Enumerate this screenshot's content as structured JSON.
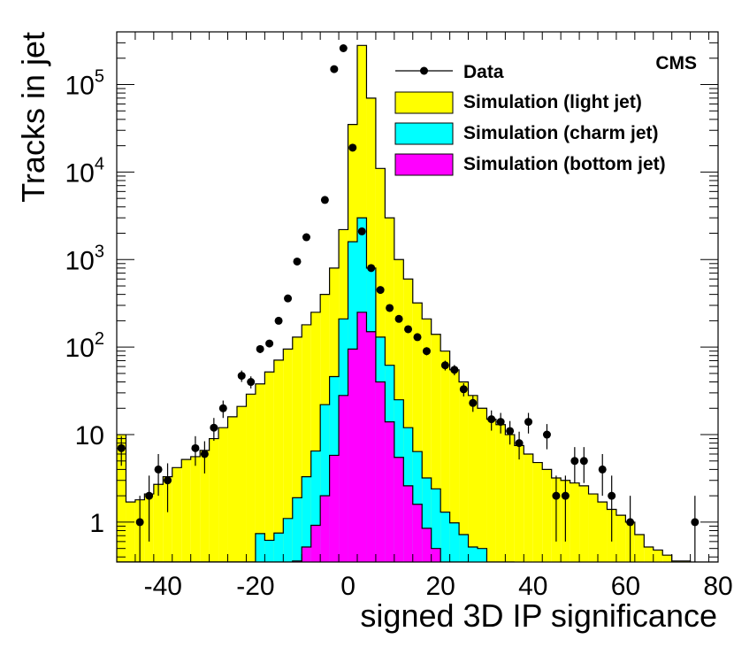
{
  "chart_data": {
    "type": "histogram",
    "title": "",
    "experiment_label": "CMS",
    "xlabel": "signed 3D IP significance",
    "ylabel": "Tracks in jet",
    "x_axis": {
      "range": [
        -50,
        80
      ],
      "scale": "linear",
      "ticks": [
        -40,
        -20,
        0,
        20,
        40,
        60,
        80
      ],
      "tick_labels": [
        "-40",
        "-20",
        "0",
        "20",
        "40",
        "60",
        "80"
      ]
    },
    "y_axis": {
      "scale": "log",
      "range": [
        0.35,
        400000
      ],
      "ticks": [
        1,
        10,
        100,
        1000,
        10000,
        100000
      ],
      "tick_labels": [
        {
          "base": "1",
          "exp": ""
        },
        {
          "base": "10",
          "exp": ""
        },
        {
          "base": "10",
          "exp": "2"
        },
        {
          "base": "10",
          "exp": "3"
        },
        {
          "base": "10",
          "exp": "4"
        },
        {
          "base": "10",
          "exp": "5"
        }
      ]
    },
    "bin_width": 2,
    "bin_edges_start": -50,
    "legend": {
      "position": "top-right",
      "entries": [
        {
          "label": "Data",
          "kind": "marker",
          "color": "#000000"
        },
        {
          "label": "Simulation (light jet)",
          "kind": "fill",
          "color": "#ffff00"
        },
        {
          "label": "Simulation (charm jet)",
          "kind": "fill",
          "color": "#00ffff"
        },
        {
          "label": "Simulation (bottom jet)",
          "kind": "fill",
          "color": "#ff00ff"
        }
      ]
    },
    "series": [
      {
        "name": "Simulation (light jet)",
        "color": "#ffff00",
        "values": [
          10,
          1.7,
          1.8,
          2.1,
          2.7,
          3.3,
          4.2,
          5.2,
          5.6,
          6.6,
          9,
          12,
          16,
          21,
          29,
          38,
          52,
          71,
          95,
          130,
          180,
          250,
          400,
          800,
          2200,
          35000,
          280000,
          70000,
          11000,
          3000,
          1000,
          600,
          320,
          210,
          140,
          90,
          55,
          40,
          28,
          20,
          15,
          13,
          10,
          7.5,
          6,
          4.8,
          4,
          3.2,
          3,
          2.8,
          2.6,
          2.1,
          1.7,
          1.4,
          1.2,
          1,
          0.72,
          0.52,
          0.48,
          0.42,
          0.36,
          0.36,
          0.32,
          0.3,
          0.28
        ]
      },
      {
        "name": "Simulation (charm jet)",
        "color": "#00ffff",
        "values": [
          0.3,
          0.3,
          0.3,
          0.3,
          0.3,
          0.3,
          0.3,
          0.3,
          0.3,
          0.3,
          0.3,
          0.3,
          0.3,
          0.3,
          0.3,
          0.74,
          0.62,
          0.75,
          1.1,
          1.9,
          3.3,
          6.5,
          22,
          46,
          210,
          1600,
          3000,
          800,
          130,
          62,
          25,
          12,
          6.4,
          3.2,
          2.4,
          1.3,
          0.98,
          0.72,
          0.52,
          0.5,
          0.3,
          0.3,
          0.3
        ]
      },
      {
        "name": "Simulation (bottom jet)",
        "color": "#ff00ff",
        "values": [
          0.3,
          0.3,
          0.3,
          0.3,
          0.3,
          0.3,
          0.3,
          0.3,
          0.3,
          0.3,
          0.3,
          0.3,
          0.3,
          0.3,
          0.3,
          0.3,
          0.3,
          0.3,
          0.34,
          0.36,
          0.52,
          0.92,
          2,
          5.8,
          28,
          95,
          250,
          150,
          40,
          14,
          5.5,
          2.6,
          1.6,
          0.85,
          0.5,
          0.3,
          0.3,
          0.3
        ]
      },
      {
        "name": "Data",
        "color": "#000000",
        "kind": "points",
        "points": [
          {
            "x": -49,
            "y": 7,
            "err": 2.6
          },
          {
            "x": -45,
            "y": 1,
            "err": 1
          },
          {
            "x": -43,
            "y": 2,
            "err": 1.4
          },
          {
            "x": -41,
            "y": 4,
            "err": 2
          },
          {
            "x": -39,
            "y": 3,
            "err": 1.7
          },
          {
            "x": -33,
            "y": 7,
            "err": 2.6
          },
          {
            "x": -31,
            "y": 6,
            "err": 2.4
          },
          {
            "x": -29,
            "y": 12,
            "err": 3.5
          },
          {
            "x": -27,
            "y": 20,
            "err": 4.5
          },
          {
            "x": -23,
            "y": 47,
            "err": 7
          },
          {
            "x": -21,
            "y": 40,
            "err": 6.3
          },
          {
            "x": -19,
            "y": 95,
            "err": 9.7
          },
          {
            "x": -17,
            "y": 110,
            "err": 10.5
          },
          {
            "x": -15,
            "y": 200,
            "err": 14
          },
          {
            "x": -13,
            "y": 360,
            "err": 19
          },
          {
            "x": -11,
            "y": 950,
            "err": 31
          },
          {
            "x": -9,
            "y": 1800,
            "err": 42
          },
          {
            "x": -5,
            "y": 4800,
            "err": 69
          },
          {
            "x": -3,
            "y": 150000,
            "err": 387
          },
          {
            "x": -1,
            "y": 260000,
            "err": 510
          },
          {
            "x": 1,
            "y": 19000,
            "err": 138
          },
          {
            "x": 3,
            "y": 2100,
            "err": 46
          },
          {
            "x": 5,
            "y": 800,
            "err": 28
          },
          {
            "x": 7,
            "y": 450,
            "err": 21
          },
          {
            "x": 9,
            "y": 280,
            "err": 17
          },
          {
            "x": 11,
            "y": 210,
            "err": 14.5
          },
          {
            "x": 13,
            "y": 160,
            "err": 12.6
          },
          {
            "x": 15,
            "y": 130,
            "err": 11.4
          },
          {
            "x": 17,
            "y": 90,
            "err": 9.5
          },
          {
            "x": 21,
            "y": 62,
            "err": 7.9
          },
          {
            "x": 23,
            "y": 55,
            "err": 7.4
          },
          {
            "x": 25,
            "y": 33,
            "err": 5.7
          },
          {
            "x": 27,
            "y": 23,
            "err": 4.8
          },
          {
            "x": 31,
            "y": 15,
            "err": 3.9
          },
          {
            "x": 33,
            "y": 14,
            "err": 3.7
          },
          {
            "x": 35,
            "y": 11,
            "err": 3.3
          },
          {
            "x": 37,
            "y": 8,
            "err": 2.8
          },
          {
            "x": 39,
            "y": 14,
            "err": 3.7
          },
          {
            "x": 43,
            "y": 10,
            "err": 3.2
          },
          {
            "x": 45,
            "y": 2,
            "err": 1.4
          },
          {
            "x": 47,
            "y": 2,
            "err": 1.4
          },
          {
            "x": 49,
            "y": 5,
            "err": 2.2
          },
          {
            "x": 51,
            "y": 5,
            "err": 2.2
          },
          {
            "x": 55,
            "y": 4,
            "err": 2
          },
          {
            "x": 57,
            "y": 2,
            "err": 1.4
          },
          {
            "x": 61,
            "y": 1,
            "err": 1
          },
          {
            "x": 75,
            "y": 1,
            "err": 1
          }
        ]
      }
    ]
  }
}
